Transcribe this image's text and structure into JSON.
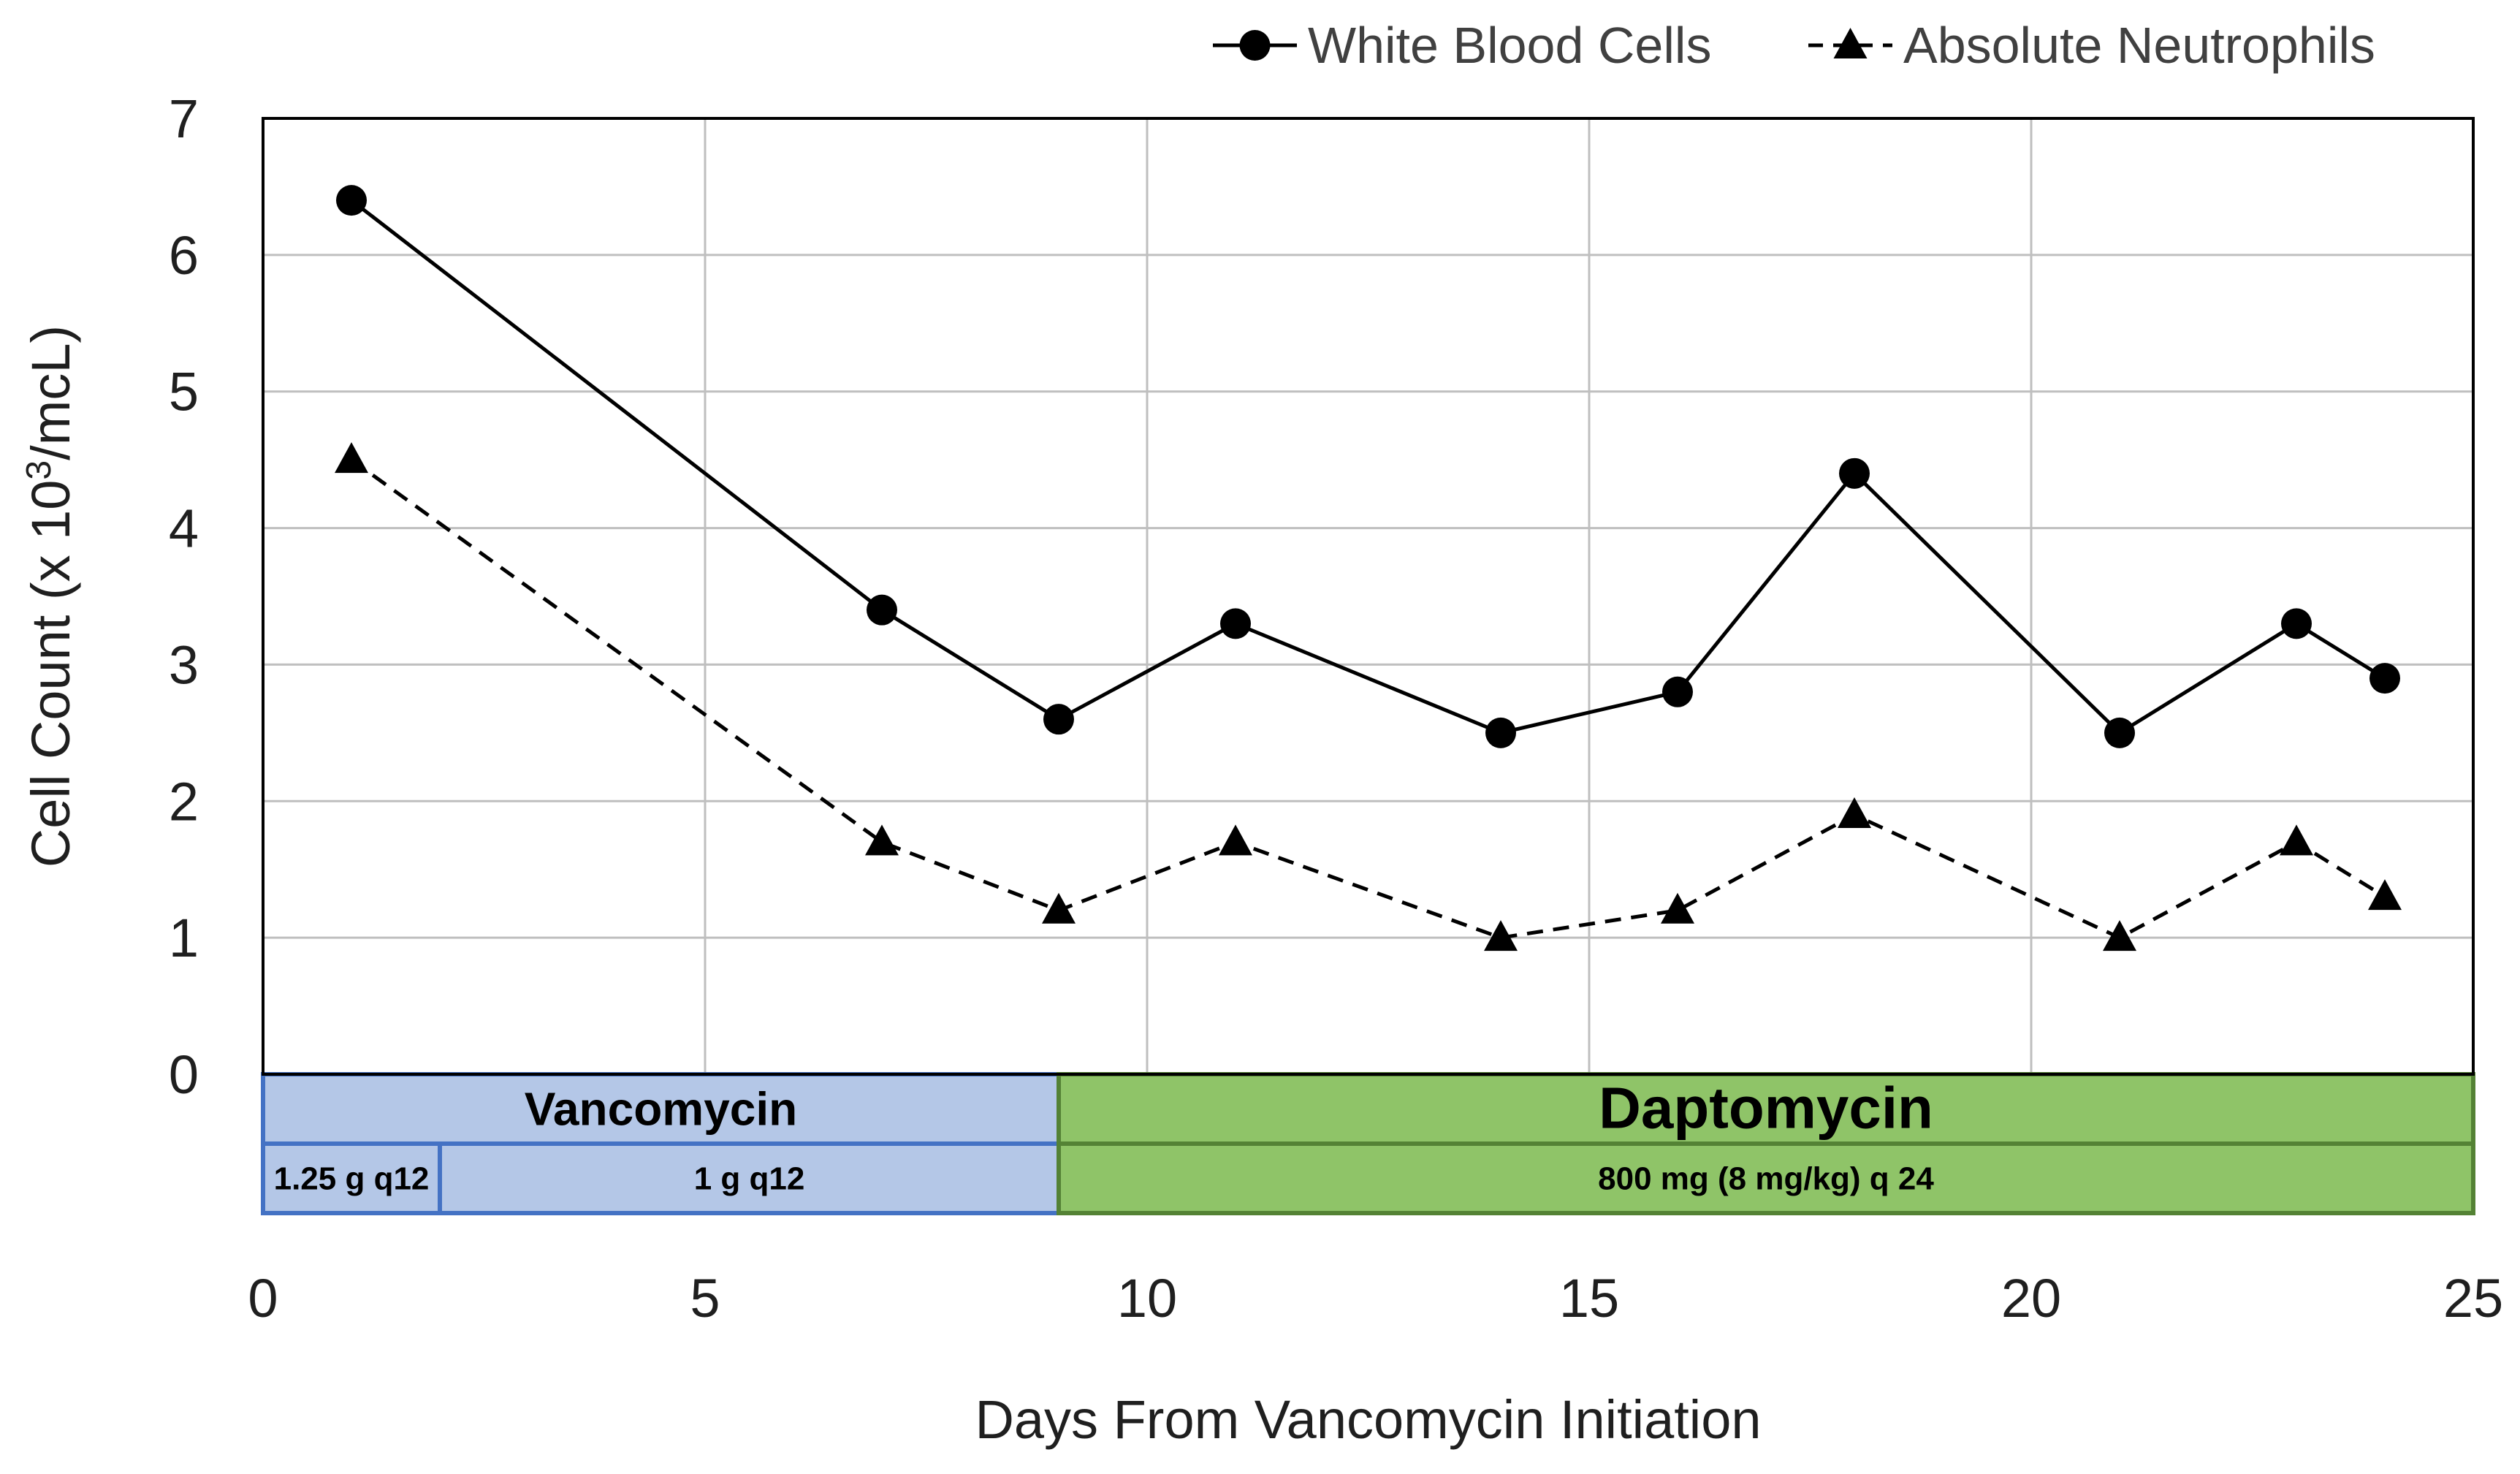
{
  "chart_data": {
    "type": "line",
    "xlabel": "Days From Vancomycin Initiation",
    "ylabel_main": "Cell Count (x 10",
    "ylabel_sup": "3",
    "ylabel_tail": "/mcL)",
    "xlim": [
      0,
      25
    ],
    "ylim": [
      0,
      7
    ],
    "xticks": [
      0,
      5,
      10,
      15,
      20,
      25
    ],
    "yticks": [
      0,
      1,
      2,
      3,
      4,
      5,
      6,
      7
    ],
    "grid": true,
    "legend_position": "top-right",
    "series": [
      {
        "name": "White Blood Cells",
        "marker": "circle",
        "line_style": "solid",
        "color": "#000000",
        "x": [
          1,
          7,
          9,
          11,
          14,
          16,
          18,
          21,
          23,
          24
        ],
        "y": [
          6.4,
          3.4,
          2.6,
          3.3,
          2.5,
          2.8,
          4.4,
          2.5,
          3.3,
          2.9
        ]
      },
      {
        "name": "Absolute Neutrophils",
        "marker": "triangle",
        "line_style": "dashed",
        "color": "#000000",
        "x": [
          1,
          7,
          9,
          11,
          14,
          16,
          18,
          21,
          23,
          24
        ],
        "y": [
          4.5,
          1.7,
          1.2,
          1.7,
          1.0,
          1.2,
          1.9,
          1.0,
          1.7,
          1.3
        ]
      }
    ],
    "treatment_bands": [
      {
        "drug": "Vancomycin",
        "start": 0,
        "end": 9,
        "fill": "#b4c7e7",
        "stroke": "#4472c4",
        "doses": [
          {
            "label": "1.25 g q12",
            "start": 0,
            "end": 2
          },
          {
            "label": "1 g q12",
            "start": 2,
            "end": 9
          }
        ]
      },
      {
        "drug": "Daptomycin",
        "start": 9,
        "end": 25,
        "fill": "#8fc468",
        "stroke": "#548235",
        "doses": [
          {
            "label": "800 mg (8 mg/kg) q 24",
            "start": 9,
            "end": 25
          }
        ]
      }
    ]
  }
}
